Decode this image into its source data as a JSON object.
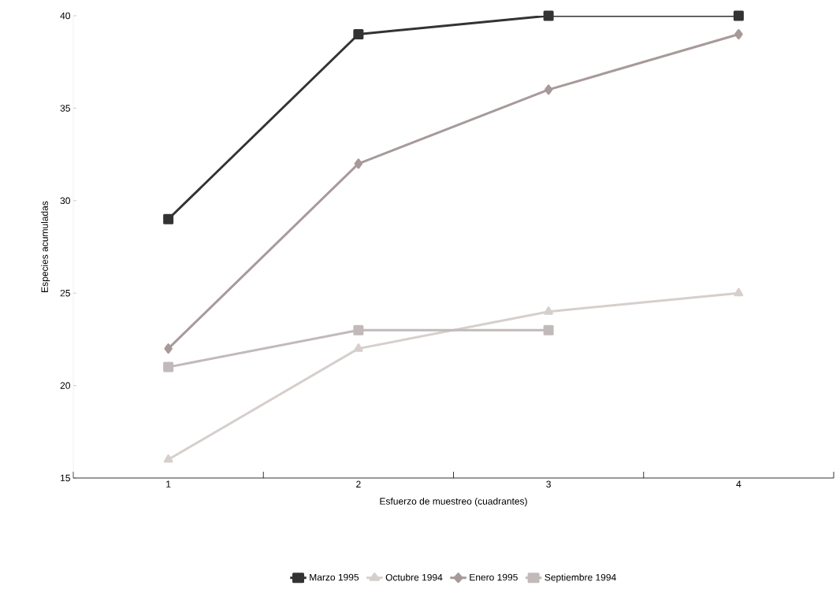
{
  "chart_data": {
    "type": "line",
    "xlabel": "Esfuerzo de muestreo  (cuadrantes)",
    "ylabel": "Especies acumuladas",
    "categories": [
      "1",
      "2",
      "3",
      "4"
    ],
    "series": [
      {
        "name": "Marzo 1995",
        "color": "#333333",
        "marker": "square",
        "values": [
          29,
          39,
          40,
          40
        ]
      },
      {
        "name": "Octubre 1994",
        "color": "#d6cfcc",
        "marker": "triangle",
        "values": [
          16,
          22,
          24,
          25
        ]
      },
      {
        "name": "Enero 1995",
        "color": "#a89a9a",
        "marker": "diamond",
        "values": [
          22,
          32,
          36,
          39
        ]
      },
      {
        "name": "Septiembre 1994",
        "color": "#c2baba",
        "marker": "square",
        "values": [
          21,
          23,
          23,
          null
        ]
      }
    ],
    "ylim": [
      15,
      40
    ],
    "yticks": [
      15,
      20,
      25,
      30,
      35,
      40
    ],
    "grid": false,
    "legend": "bottom",
    "line_style": "solid"
  }
}
